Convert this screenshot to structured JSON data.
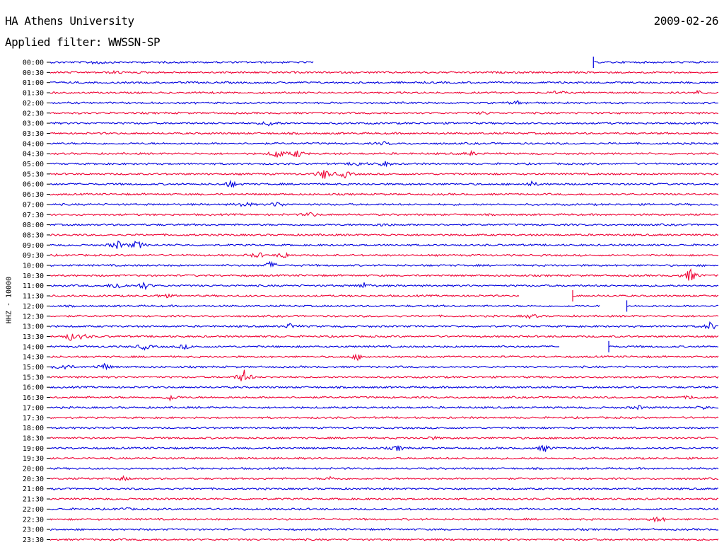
{
  "header": {
    "station": "HA Athens University",
    "date": "2009-02-26",
    "filter": "Applied filter: WWSSN-SP"
  },
  "channel_label": "HHZ - 10000",
  "colors": {
    "blue": "#0000dd",
    "red": "#ee0033"
  },
  "chart_data": {
    "type": "line",
    "title": "HA Athens University",
    "subtitle": "Applied filter: WWSSN-SP",
    "ylabel": "HHZ - 10000",
    "xlabel": "",
    "rows": [
      {
        "label": "00:00",
        "color": "blue",
        "events": [
          [
            0.07,
            1.2
          ]
        ],
        "gaps": [
          [
            0.394,
            0.813
          ]
        ]
      },
      {
        "label": "00:30",
        "color": "red",
        "events": [
          [
            0.1,
            0.6
          ]
        ],
        "gaps": []
      },
      {
        "label": "01:00",
        "color": "blue",
        "events": [],
        "gaps": []
      },
      {
        "label": "01:30",
        "color": "red",
        "events": [
          [
            0.76,
            0.8
          ],
          [
            0.97,
            0.8
          ]
        ],
        "gaps": []
      },
      {
        "label": "02:00",
        "color": "blue",
        "events": [
          [
            0.7,
            0.8
          ]
        ],
        "gaps": []
      },
      {
        "label": "02:30",
        "color": "red",
        "events": [
          [
            0.65,
            0.6
          ]
        ],
        "gaps": []
      },
      {
        "label": "03:00",
        "color": "blue",
        "events": [
          [
            0.33,
            1.5
          ]
        ],
        "gaps": []
      },
      {
        "label": "03:30",
        "color": "red",
        "events": [],
        "gaps": []
      },
      {
        "label": "04:00",
        "color": "blue",
        "events": [
          [
            0.5,
            0.6
          ]
        ],
        "gaps": []
      },
      {
        "label": "04:30",
        "color": "red",
        "events": [
          [
            0.34,
            2.2
          ],
          [
            0.37,
            1.8
          ],
          [
            0.63,
            0.8
          ]
        ],
        "gaps": []
      },
      {
        "label": "05:00",
        "color": "blue",
        "events": [
          [
            0.46,
            1.2
          ],
          [
            0.5,
            1.2
          ]
        ],
        "gaps": []
      },
      {
        "label": "05:30",
        "color": "red",
        "events": [
          [
            0.41,
            2.6
          ],
          [
            0.44,
            1.6
          ]
        ],
        "gaps": []
      },
      {
        "label": "06:00",
        "color": "blue",
        "events": [
          [
            0.27,
            1.6
          ],
          [
            0.72,
            1.0
          ]
        ],
        "gaps": []
      },
      {
        "label": "06:30",
        "color": "red",
        "events": [],
        "gaps": []
      },
      {
        "label": "07:00",
        "color": "blue",
        "events": [
          [
            0.29,
            1.4
          ],
          [
            0.34,
            1.2
          ]
        ],
        "gaps": []
      },
      {
        "label": "07:30",
        "color": "red",
        "events": [
          [
            0.39,
            1.0
          ]
        ],
        "gaps": []
      },
      {
        "label": "08:00",
        "color": "blue",
        "events": [
          [
            0.5,
            0.8
          ]
        ],
        "gaps": []
      },
      {
        "label": "08:30",
        "color": "red",
        "events": [],
        "gaps": []
      },
      {
        "label": "09:00",
        "color": "blue",
        "events": [
          [
            0.1,
            2.0
          ],
          [
            0.13,
            2.0
          ]
        ],
        "gaps": []
      },
      {
        "label": "09:30",
        "color": "red",
        "events": [
          [
            0.31,
            1.4
          ],
          [
            0.35,
            1.4
          ]
        ],
        "gaps": []
      },
      {
        "label": "10:00",
        "color": "blue",
        "events": [
          [
            0.33,
            1.6
          ]
        ],
        "gaps": []
      },
      {
        "label": "10:30",
        "color": "red",
        "events": [
          [
            0.958,
            3.0
          ]
        ],
        "gaps": []
      },
      {
        "label": "11:00",
        "color": "blue",
        "events": [
          [
            0.1,
            1.8
          ],
          [
            0.14,
            1.8
          ],
          [
            0.47,
            1.2
          ]
        ],
        "gaps": []
      },
      {
        "label": "11:30",
        "color": "red",
        "events": [
          [
            0.17,
            1.0
          ]
        ],
        "gaps": [
          [
            0.703,
            0.782
          ]
        ]
      },
      {
        "label": "12:00",
        "color": "blue",
        "events": [],
        "gaps": [
          [
            0.823,
            0.863
          ]
        ]
      },
      {
        "label": "12:30",
        "color": "red",
        "events": [
          [
            0.72,
            1.0
          ]
        ],
        "gaps": []
      },
      {
        "label": "13:00",
        "color": "blue",
        "events": [
          [
            0.36,
            1.2
          ],
          [
            0.988,
            1.8
          ]
        ],
        "gaps": []
      },
      {
        "label": "13:30",
        "color": "red",
        "events": [
          [
            0.03,
            1.6
          ],
          [
            0.05,
            1.2
          ]
        ],
        "gaps": []
      },
      {
        "label": "14:00",
        "color": "blue",
        "events": [
          [
            0.14,
            1.4
          ],
          [
            0.2,
            1.0
          ]
        ],
        "gaps": [
          [
            0.763,
            0.836
          ]
        ]
      },
      {
        "label": "14:30",
        "color": "red",
        "events": [
          [
            0.46,
            1.2
          ]
        ],
        "gaps": []
      },
      {
        "label": "15:00",
        "color": "blue",
        "events": [
          [
            0.02,
            1.6
          ],
          [
            0.08,
            1.6
          ]
        ],
        "gaps": []
      },
      {
        "label": "15:30",
        "color": "red",
        "events": [
          [
            0.29,
            3.2
          ]
        ],
        "gaps": []
      },
      {
        "label": "16:00",
        "color": "blue",
        "events": [],
        "gaps": []
      },
      {
        "label": "16:30",
        "color": "red",
        "events": [
          [
            0.18,
            1.4
          ],
          [
            0.96,
            0.8
          ]
        ],
        "gaps": []
      },
      {
        "label": "17:00",
        "color": "blue",
        "events": [
          [
            0.88,
            0.8
          ],
          [
            0.98,
            0.8
          ]
        ],
        "gaps": []
      },
      {
        "label": "17:30",
        "color": "red",
        "events": [],
        "gaps": []
      },
      {
        "label": "18:00",
        "color": "blue",
        "events": [],
        "gaps": []
      },
      {
        "label": "18:30",
        "color": "red",
        "events": [
          [
            0.57,
            0.8
          ]
        ],
        "gaps": []
      },
      {
        "label": "19:00",
        "color": "blue",
        "events": [
          [
            0.52,
            1.2
          ],
          [
            0.74,
            1.6
          ]
        ],
        "gaps": []
      },
      {
        "label": "19:30",
        "color": "red",
        "events": [],
        "gaps": []
      },
      {
        "label": "20:00",
        "color": "blue",
        "events": [],
        "gaps": []
      },
      {
        "label": "20:30",
        "color": "red",
        "events": [
          [
            0.11,
            0.8
          ],
          [
            0.42,
            0.8
          ]
        ],
        "gaps": []
      },
      {
        "label": "21:00",
        "color": "blue",
        "events": [],
        "gaps": []
      },
      {
        "label": "21:30",
        "color": "red",
        "events": [],
        "gaps": []
      },
      {
        "label": "22:00",
        "color": "blue",
        "events": [
          [
            0.11,
            0.6
          ]
        ],
        "gaps": []
      },
      {
        "label": "22:30",
        "color": "red",
        "events": [
          [
            0.91,
            1.4
          ]
        ],
        "gaps": []
      },
      {
        "label": "23:00",
        "color": "blue",
        "events": [],
        "gaps": []
      },
      {
        "label": "23:30",
        "color": "red",
        "events": [],
        "gaps": []
      }
    ]
  }
}
